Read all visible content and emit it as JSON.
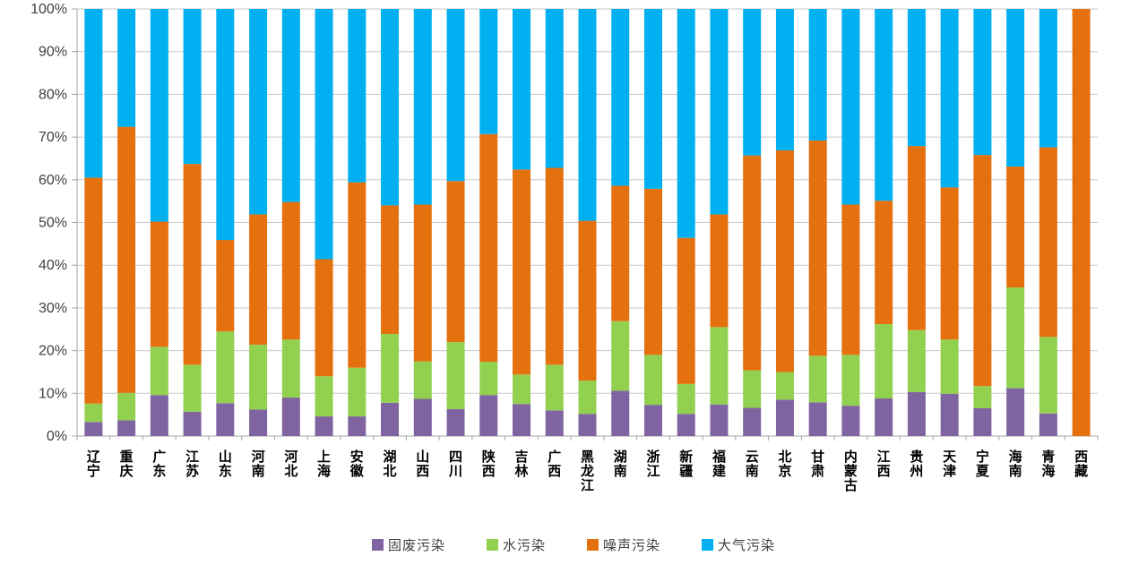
{
  "chart_data": {
    "type": "bar",
    "stacked": true,
    "percent": true,
    "title": "",
    "xlabel": "",
    "ylabel": "",
    "ylim": [
      0,
      100
    ],
    "ytick_step": 10,
    "ytick_labels": [
      "0%",
      "10%",
      "20%",
      "30%",
      "40%",
      "50%",
      "60%",
      "70%",
      "80%",
      "90%",
      "100%"
    ],
    "grid": true,
    "legend_position": "bottom",
    "categories": [
      "辽宁",
      "重庆",
      "广东",
      "江苏",
      "山东",
      "河南",
      "河北",
      "上海",
      "安徽",
      "湖北",
      "山西",
      "四川",
      "陕西",
      "吉林",
      "广西",
      "黑龙江",
      "湖南",
      "浙江",
      "新疆",
      "福建",
      "云南",
      "北京",
      "甘肃",
      "内蒙古",
      "江西",
      "贵州",
      "天津",
      "宁夏",
      "海南",
      "青海",
      "西藏"
    ],
    "series": [
      {
        "name": "固废污染",
        "color": "#8064A2",
        "values": [
          3.3,
          3.7,
          9.6,
          5.7,
          7.7,
          6.2,
          9.0,
          4.6,
          4.6,
          7.8,
          8.7,
          6.3,
          9.6,
          7.5,
          6.0,
          5.2,
          10.6,
          7.3,
          5.2,
          7.4,
          6.6,
          8.5,
          7.9,
          7.1,
          8.8,
          10.3,
          9.9,
          6.5,
          11.2,
          5.3,
          0
        ]
      },
      {
        "name": "水污染",
        "color": "#92D050",
        "values": [
          4.3,
          6.4,
          11.3,
          11.0,
          16.8,
          15.2,
          13.6,
          9.4,
          11.4,
          16.1,
          8.8,
          15.7,
          7.8,
          6.9,
          10.7,
          7.8,
          16.3,
          11.7,
          7.0,
          18.1,
          8.8,
          6.5,
          10.9,
          11.9,
          17.4,
          14.5,
          12.7,
          5.2,
          23.6,
          17.9,
          0
        ]
      },
      {
        "name": "噪声污染",
        "color": "#E5710E",
        "values": [
          52.9,
          62.3,
          29.3,
          47.0,
          21.4,
          30.5,
          32.2,
          27.4,
          43.4,
          30.1,
          36.7,
          37.7,
          53.3,
          48.0,
          46.1,
          37.4,
          31.7,
          38.9,
          34.2,
          26.4,
          50.3,
          51.9,
          50.4,
          35.2,
          28.9,
          43.1,
          35.6,
          54.1,
          28.3,
          44.4,
          100
        ]
      },
      {
        "name": "大气污染",
        "color": "#00B0F0",
        "values": [
          39.5,
          27.6,
          49.8,
          36.3,
          54.1,
          48.1,
          45.2,
          58.6,
          40.6,
          46.0,
          45.8,
          40.3,
          29.3,
          37.6,
          37.2,
          49.6,
          41.4,
          42.1,
          53.6,
          48.1,
          34.3,
          33.1,
          30.8,
          45.8,
          44.9,
          32.1,
          41.8,
          34.2,
          36.9,
          32.4,
          0
        ]
      }
    ],
    "style": {
      "grid_color": "#C9C9C9",
      "axis_color": "#A6A6A6",
      "ytick_label_color": "#404040",
      "xtick_label_color": "#000000",
      "background": "#FFFFFF"
    }
  }
}
